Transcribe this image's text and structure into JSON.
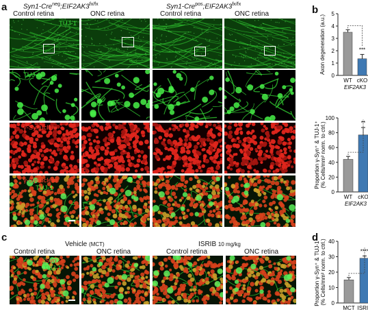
{
  "panels": {
    "a": "a",
    "b": "b",
    "c": "c",
    "d": "d"
  },
  "panel_a": {
    "genotype_wt_prefix": "Syn1-Cre",
    "genotype_wt_sup1": "neg",
    "genotype_wt_mid": ";EIF2AK3",
    "genotype_wt_sup2": "fx/fx",
    "genotype_ko_prefix": "Syn1-Cre",
    "genotype_ko_sup1": "pos",
    "genotype_ko_mid": ";EIF2AK3",
    "genotype_ko_sup2": "fx/fx",
    "col_labels": [
      "Control retina",
      "ONC retina",
      "Control retina",
      "ONC retina"
    ],
    "row_labels": {
      "tuj1_low": "TUJ-1",
      "tuj1_high": "TUJ-1",
      "syn": "γ-Synuclein",
      "merge_syn": "γ-Synuclein",
      "merge_tuj": "TUJ-1"
    }
  },
  "panel_c": {
    "vehicle_label": "Vehicle",
    "vehicle_sub": "(MCT)",
    "isrib_label": "ISRIB",
    "isrib_sub": "10 mg/kg",
    "col_labels": [
      "Control retina",
      "ONC retina",
      "Control retina",
      "ONC retina"
    ],
    "merge_syn": "γ-Syn",
    "merge_tuj": "TUJ-1"
  },
  "colors": {
    "wt_bar": "#9a9a9a",
    "ko_bar": "#3f79b3",
    "tuj_green": "#39e13b",
    "syn_red": "#ff3a2a"
  },
  "chart_data": [
    {
      "type": "bar",
      "id": "b-top",
      "categories": [
        "WT",
        "cKO"
      ],
      "category_group": "EIF2AK3",
      "values": [
        3.5,
        1.35
      ],
      "errors": [
        0.2,
        0.35
      ],
      "ylabel": "Axon degeneration (a.u.)",
      "ylim": [
        0,
        5
      ],
      "yticks": [
        0,
        1,
        2,
        3,
        4,
        5
      ],
      "significance": "***"
    },
    {
      "type": "bar",
      "id": "b-bottom",
      "categories": [
        "WT",
        "cKO"
      ],
      "category_group": "EIF2AK3",
      "values": [
        44,
        77
      ],
      "errors": [
        4,
        10
      ],
      "ylabel_line1": "Proportion γ-Syn⁺ & TUJ-1⁺",
      "ylabel_line2": "(% Cells/mm² norm. to ctrl.)",
      "ylim": [
        0,
        100
      ],
      "yticks": [
        0,
        20,
        40,
        60,
        80,
        100
      ],
      "significance": "**"
    },
    {
      "type": "bar",
      "id": "d",
      "categories": [
        "MCT",
        "ISRIB"
      ],
      "category_group": "",
      "values": [
        15,
        29
      ],
      "errors": [
        1.5,
        1.5
      ],
      "ylabel_line1": "Proportion γ-Syn⁺ & TUJ-1⁺",
      "ylabel_line2": "(% Cells/mm² norm. to ctrl.)",
      "ylim": [
        0,
        40
      ],
      "yticks": [
        0,
        10,
        20,
        30,
        40
      ],
      "significance": "****"
    }
  ]
}
